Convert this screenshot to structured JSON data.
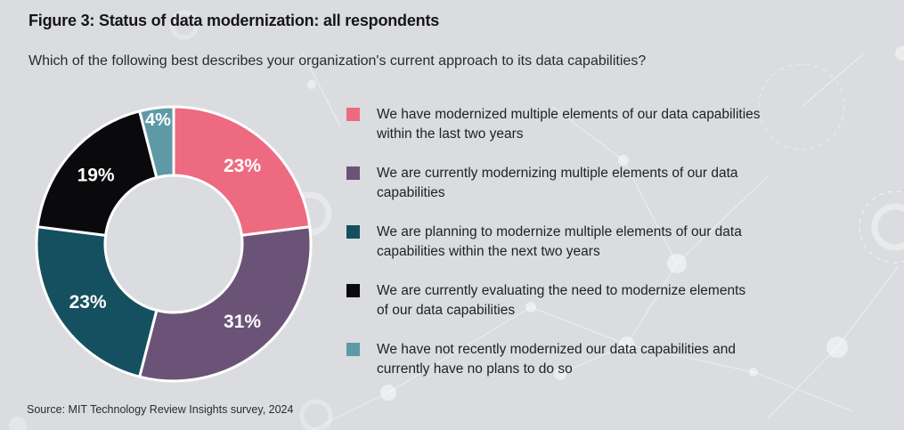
{
  "figure": {
    "title": "Figure 3: Status of data modernization: all respondents",
    "question": "Which of the following best describes your organization's current approach to its data capabilities?",
    "source": "Source: MIT Technology Review Insights survey, 2024"
  },
  "legend": [
    {
      "line1": "We have modernized multiple elements of our data capabilities",
      "line2": "within the last two years",
      "color": "#ee6a80"
    },
    {
      "line1": "We are currently modernizing multiple elements of our data",
      "line2": "capabilities",
      "color": "#6b5377"
    },
    {
      "line1": "We are planning to modernize multiple elements of our data",
      "line2": "capabilities within the next two years",
      "color": "#14505f"
    },
    {
      "line1": "We are currently evaluating the need to modernize elements",
      "line2": "of our data capabilities",
      "color": "#0a090b"
    },
    {
      "line1": "We have not recently modernized our data capabilities and",
      "line2": "currently have no plans to do so",
      "color": "#5e9aa5"
    }
  ],
  "chart_data": {
    "type": "pie",
    "subtype": "donut",
    "title": "Figure 3: Status of data modernization: all respondents",
    "question": "Which of the following best describes your organization's current approach to its data capabilities?",
    "unit": "percent",
    "categories": [
      "We have modernized multiple elements of our data capabilities within the last two years",
      "We are currently modernizing multiple elements of our data capabilities",
      "We are planning to modernize multiple elements of our data capabilities within the next two years",
      "We are currently evaluating the need to modernize elements of our data capabilities",
      "We have not recently modernized our data capabilities and currently have no plans to do so"
    ],
    "values": [
      23,
      31,
      23,
      19,
      4
    ],
    "slice_labels": [
      "23%",
      "31%",
      "23%",
      "19%",
      "4%"
    ],
    "colors": [
      "#ee6a80",
      "#6b5377",
      "#14505f",
      "#0a090b",
      "#5e9aa5"
    ],
    "start_angle_deg": 0,
    "direction": "clockwise",
    "donut_hole_ratio": 0.5,
    "slice_border_color": "#ffffff",
    "legend_position": "right",
    "source": "Source: MIT Technology Review Insights survey, 2024"
  }
}
